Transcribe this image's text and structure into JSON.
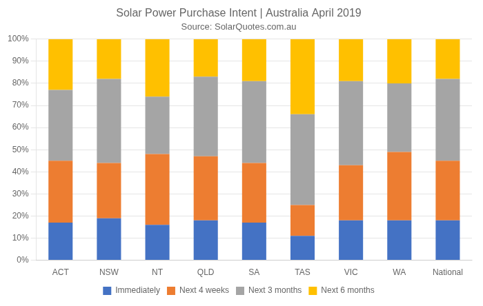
{
  "chart_data": {
    "type": "bar",
    "title": "Solar Power Purchase Intent | Australia April 2019",
    "subtitle": "Source: SolarQuotes.com.au",
    "categories": [
      "ACT",
      "NSW",
      "NT",
      "QLD",
      "SA",
      "TAS",
      "VIC",
      "WA",
      "National"
    ],
    "series": [
      {
        "name": "Immediately",
        "color": "#4472C4",
        "values": [
          17,
          19,
          16,
          18,
          17,
          11,
          18,
          18,
          18
        ]
      },
      {
        "name": "Next 4 weeks",
        "color": "#ED7D31",
        "values": [
          28,
          25,
          32,
          29,
          27,
          14,
          25,
          31,
          27
        ]
      },
      {
        "name": "Next 3 months",
        "color": "#A5A5A5",
        "values": [
          32,
          38,
          26,
          36,
          37,
          41,
          38,
          31,
          37
        ]
      },
      {
        "name": "Next 6 months",
        "color": "#FFC000",
        "values": [
          23,
          18,
          26,
          17,
          19,
          34,
          19,
          20,
          18
        ]
      }
    ],
    "stacked": true,
    "ylim": [
      0,
      100
    ],
    "yticks": [
      {
        "value": 0,
        "label": "0%"
      },
      {
        "value": 10,
        "label": "10%"
      },
      {
        "value": 20,
        "label": "20%"
      },
      {
        "value": 30,
        "label": "30%"
      },
      {
        "value": 40,
        "label": "40%"
      },
      {
        "value": 50,
        "label": "50%"
      },
      {
        "value": 60,
        "label": "60%"
      },
      {
        "value": 70,
        "label": "70%"
      },
      {
        "value": 80,
        "label": "80%"
      },
      {
        "value": 90,
        "label": "90%"
      },
      {
        "value": 100,
        "label": "100%"
      }
    ],
    "grid": true,
    "legend": "bottom"
  }
}
